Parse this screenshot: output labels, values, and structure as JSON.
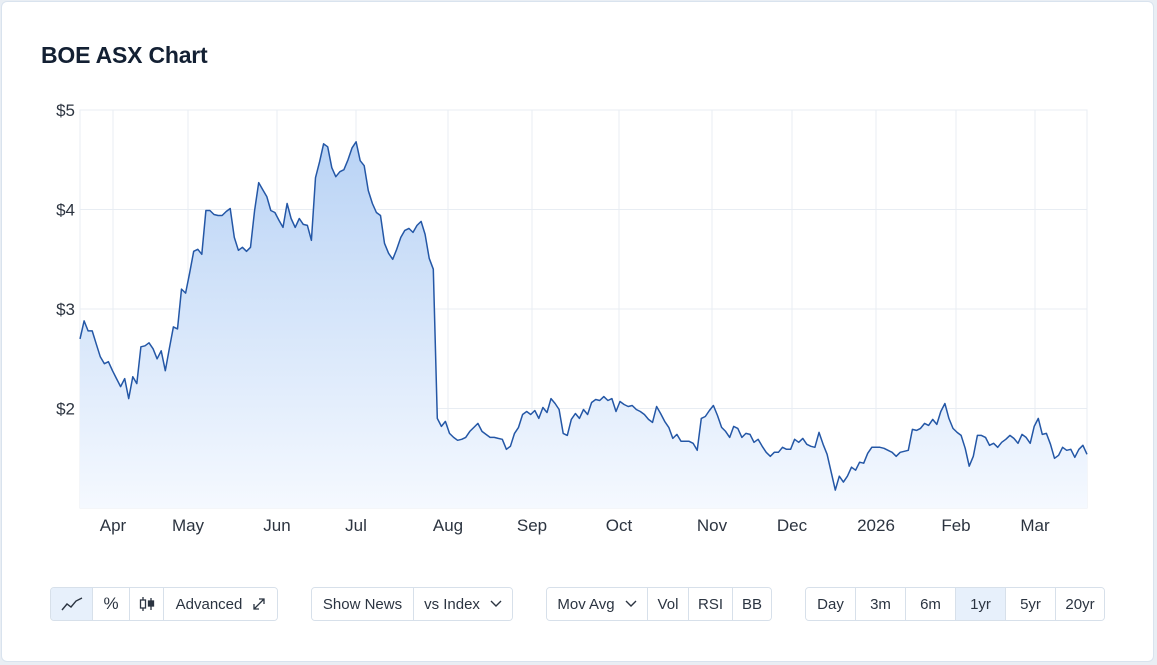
{
  "title": "BOE ASX Chart",
  "colors": {
    "line": "#2457a6",
    "fill_top": "#b9d3f5",
    "fill_bottom": "#f5f9ff",
    "active_bg": "#e7f0fb"
  },
  "chart_data": {
    "type": "area",
    "title": "BOE ASX Chart",
    "ylim": [
      1.0,
      5.0
    ],
    "y_ticks": [
      {
        "value": 5,
        "label": "$5"
      },
      {
        "value": 4,
        "label": "$4"
      },
      {
        "value": 3,
        "label": "$3"
      },
      {
        "value": 2,
        "label": "$2"
      }
    ],
    "x_ticks": [
      "Apr",
      "May",
      "Jun",
      "Jul",
      "Aug",
      "Sep",
      "Oct",
      "Nov",
      "Dec",
      "2026",
      "Feb",
      "Mar"
    ],
    "grid": true,
    "series": [
      {
        "values": [
          2.7,
          2.88,
          2.78,
          2.78,
          2.65,
          2.52,
          2.45,
          2.47,
          2.38,
          2.3,
          2.22,
          2.3,
          2.1,
          2.32,
          2.25,
          2.62,
          2.63,
          2.66,
          2.6,
          2.5,
          2.58,
          2.38,
          2.6,
          2.82,
          2.8,
          3.2,
          3.16,
          3.36,
          3.58,
          3.6,
          3.55,
          3.99,
          3.99,
          3.95,
          3.94,
          3.94,
          3.98,
          4.01,
          3.72,
          3.59,
          3.62,
          3.58,
          3.62,
          3.99,
          4.27,
          4.2,
          4.13,
          3.99,
          3.97,
          3.89,
          3.82,
          4.06,
          3.91,
          3.82,
          3.91,
          3.85,
          3.84,
          3.69,
          4.32,
          4.48,
          4.66,
          4.63,
          4.42,
          4.33,
          4.38,
          4.4,
          4.5,
          4.62,
          4.68,
          4.49,
          4.44,
          4.19,
          4.06,
          3.97,
          3.94,
          3.66,
          3.56,
          3.5,
          3.6,
          3.72,
          3.79,
          3.81,
          3.77,
          3.84,
          3.88,
          3.75,
          3.51,
          3.4,
          1.9,
          1.82,
          1.87,
          1.75,
          1.71,
          1.68,
          1.69,
          1.71,
          1.77,
          1.81,
          1.85,
          1.77,
          1.74,
          1.71,
          1.71,
          1.7,
          1.69,
          1.59,
          1.62,
          1.75,
          1.81,
          1.94,
          1.97,
          1.94,
          1.98,
          1.9,
          2.01,
          1.96,
          2.1,
          2.05,
          1.99,
          1.75,
          1.73,
          1.89,
          1.95,
          1.9,
          1.99,
          1.94,
          2.06,
          2.09,
          2.08,
          2.12,
          2.08,
          2.1,
          1.97,
          2.07,
          2.04,
          2.02,
          2.03,
          1.99,
          1.97,
          1.94,
          1.89,
          1.86,
          2.02,
          1.95,
          1.87,
          1.81,
          1.7,
          1.74,
          1.67,
          1.67,
          1.67,
          1.65,
          1.58,
          1.9,
          1.92,
          1.98,
          2.03,
          1.93,
          1.81,
          1.77,
          1.71,
          1.82,
          1.8,
          1.71,
          1.75,
          1.74,
          1.66,
          1.69,
          1.62,
          1.56,
          1.52,
          1.56,
          1.56,
          1.61,
          1.59,
          1.59,
          1.69,
          1.66,
          1.7,
          1.64,
          1.62,
          1.61,
          1.76,
          1.64,
          1.54,
          1.36,
          1.18,
          1.32,
          1.26,
          1.32,
          1.41,
          1.38,
          1.46,
          1.45,
          1.55,
          1.61,
          1.61,
          1.61,
          1.6,
          1.58,
          1.56,
          1.52,
          1.56,
          1.57,
          1.58,
          1.79,
          1.78,
          1.8,
          1.85,
          1.83,
          1.89,
          1.84,
          1.97,
          2.05,
          1.9,
          1.8,
          1.76,
          1.73,
          1.6,
          1.42,
          1.52,
          1.73,
          1.73,
          1.71,
          1.63,
          1.65,
          1.61,
          1.66,
          1.69,
          1.73,
          1.7,
          1.65,
          1.74,
          1.71,
          1.65,
          1.82,
          1.9,
          1.74,
          1.75,
          1.64,
          1.5,
          1.53,
          1.61,
          1.58,
          1.59,
          1.51,
          1.59,
          1.63,
          1.54
        ]
      }
    ]
  },
  "toolbar": {
    "group1": {
      "line_icon": "line-chart-icon",
      "percent_label": "%",
      "candle_icon": "candlestick-icon",
      "advanced_label": "Advanced",
      "expand_icon": "expand-icon"
    },
    "group2": {
      "show_news_label": "Show News",
      "vs_index_label": "vs Index",
      "chevron_icon": "chevron-down-icon"
    },
    "group3": {
      "mov_avg_label": "Mov Avg",
      "vol_label": "Vol",
      "rsi_label": "RSI",
      "bb_label": "BB"
    },
    "ranges": [
      "Day",
      "3m",
      "6m",
      "1yr",
      "5yr",
      "20yr"
    ],
    "active_range": "1yr"
  }
}
